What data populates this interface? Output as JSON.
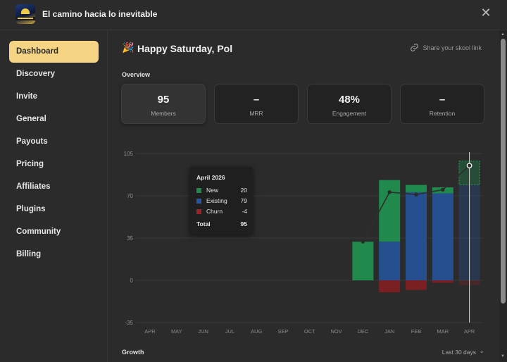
{
  "app": {
    "title": "El camino hacia lo inevitable"
  },
  "sidebar": {
    "items": [
      {
        "label": "Dashboard",
        "active": true
      },
      {
        "label": "Discovery"
      },
      {
        "label": "Invite"
      },
      {
        "label": "General"
      },
      {
        "label": "Payouts"
      },
      {
        "label": "Pricing"
      },
      {
        "label": "Affiliates"
      },
      {
        "label": "Plugins"
      },
      {
        "label": "Community"
      },
      {
        "label": "Billing"
      }
    ]
  },
  "header": {
    "greeting": "Happy Saturday, Pol",
    "share": "Share your skool link"
  },
  "overview": {
    "title": "Overview",
    "stats": [
      {
        "value": "95",
        "label": "Members"
      },
      {
        "value": "–",
        "label": "MRR"
      },
      {
        "value": "48%",
        "label": "Engagement"
      },
      {
        "value": "–",
        "label": "Retention"
      }
    ]
  },
  "tooltip": {
    "title": "April 2026",
    "rows": [
      {
        "name": "New",
        "value": "20"
      },
      {
        "name": "Existing",
        "value": "79"
      },
      {
        "name": "Churn",
        "value": "-4"
      }
    ],
    "total_label": "Total",
    "total_value": "95"
  },
  "growth": {
    "title": "Growth",
    "range": "Last 30 days"
  },
  "colors": {
    "new": "#1f8a4c",
    "existing": "#254f8f",
    "churn": "#7a1f22",
    "accent": "#f5d483"
  },
  "chart_data": {
    "type": "bar",
    "categories": [
      "APR",
      "MAY",
      "JUN",
      "JUL",
      "AUG",
      "SEP",
      "OCT",
      "NOV",
      "DEC",
      "JAN",
      "FEB",
      "MAR",
      "APR"
    ],
    "series": [
      {
        "name": "New",
        "values": [
          0,
          0,
          0,
          0,
          0,
          0,
          0,
          0,
          32,
          51,
          6,
          5,
          20
        ]
      },
      {
        "name": "Existing",
        "values": [
          0,
          0,
          0,
          0,
          0,
          0,
          0,
          0,
          0,
          32,
          73,
          72,
          79
        ]
      },
      {
        "name": "Churn",
        "values": [
          0,
          0,
          0,
          0,
          0,
          0,
          0,
          0,
          0,
          -10,
          -8,
          -2,
          -4
        ]
      }
    ],
    "line": [
      null,
      null,
      null,
      null,
      null,
      null,
      null,
      null,
      32,
      73,
      71,
      75,
      95
    ],
    "yticks": [
      105,
      70,
      35,
      0,
      -35
    ],
    "ylim": [
      -35,
      105
    ]
  }
}
